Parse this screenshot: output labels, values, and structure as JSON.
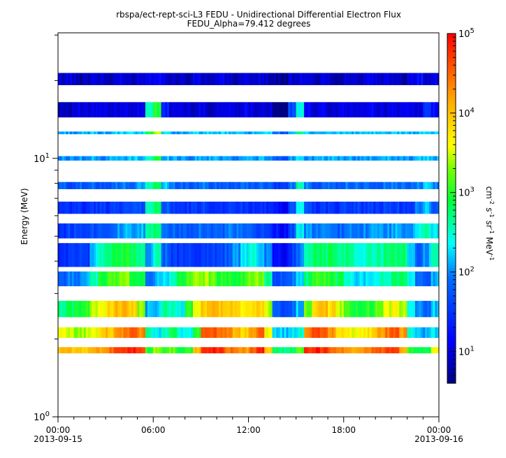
{
  "chart_data": {
    "type": "heatmap",
    "title": "rbspa/ect-rept-sci-L3  FEDU - Unidirectional Differential Electron Flux",
    "subtitle": "FEDU_Alpha=79.412 degrees",
    "xlabel": "",
    "ylabel": "Energy (MeV)",
    "yscale": "log",
    "ylim": [
      1,
      30.6
    ],
    "y_ticks": [
      {
        "base": "10",
        "exp": "0"
      },
      {
        "base": "10",
        "exp": "1"
      }
    ],
    "x_range_hours": [
      0,
      24
    ],
    "x_ticks": [
      {
        "time": "00:00",
        "date": "2013-09-15",
        "hour": 0
      },
      {
        "time": "06:00",
        "date": "",
        "hour": 6
      },
      {
        "time": "12:00",
        "date": "",
        "hour": 12
      },
      {
        "time": "18:00",
        "date": "",
        "hour": 18
      },
      {
        "time": "00:00",
        "date": "2013-09-16",
        "hour": 24
      }
    ],
    "colorbar": {
      "label_parts": [
        [
          "cm",
          "-2"
        ],
        [
          "s",
          "-1"
        ],
        [
          "sr",
          "-1"
        ],
        [
          "MeV",
          "-1"
        ]
      ],
      "scale": "log",
      "range_log10": [
        0.6,
        5
      ],
      "ticks": [
        {
          "base": "10",
          "exp": "1"
        },
        {
          "base": "10",
          "exp": "2"
        },
        {
          "base": "10",
          "exp": "3"
        },
        {
          "base": "10",
          "exp": "4"
        },
        {
          "base": "10",
          "exp": "5"
        }
      ],
      "colormap": "jet"
    },
    "time_bin_hours": 0.5,
    "value_units": "log10 flux (cm^-2 s^-1 sr^-1 MeV^-1)",
    "channels": [
      {
        "energy": 20.0,
        "lo": 19.2,
        "hi": 21.4,
        "values": [
          0.9,
          1.0,
          0.8,
          0.9,
          1.0,
          0.9,
          0.8,
          1.0,
          0.9,
          0.9,
          1.0,
          1.1,
          1.2,
          1.0,
          0.9,
          0.9,
          0.8,
          1.0,
          0.9,
          0.9,
          1.0,
          0.9,
          0.8,
          0.9,
          1.0,
          1.0,
          0.9,
          0.7,
          0.6,
          0.9,
          1.0,
          0.9,
          0.9,
          1.0,
          0.9,
          0.8,
          1.0,
          0.9,
          0.9,
          1.0,
          0.9,
          0.9,
          1.0,
          0.8,
          1.1,
          1.2,
          0.9,
          1.0
        ]
      },
      {
        "energy": 15.5,
        "lo": 14.4,
        "hi": 16.5,
        "values": [
          0.9,
          0.9,
          1.0,
          0.9,
          1.0,
          1.0,
          0.9,
          1.0,
          1.1,
          1.0,
          1.0,
          2.6,
          2.9,
          1.3,
          1.0,
          1.0,
          0.9,
          1.0,
          1.0,
          0.9,
          1.0,
          1.0,
          1.0,
          1.1,
          1.0,
          1.0,
          1.0,
          0.5,
          0.4,
          1.6,
          2.4,
          1.2,
          1.0,
          1.0,
          0.9,
          1.0,
          1.0,
          1.0,
          1.0,
          1.1,
          1.0,
          1.0,
          1.0,
          1.0,
          1.1,
          1.0,
          1.4,
          1.2
        ]
      },
      {
        "energy": 12.6,
        "lo": 12.4,
        "hi": 12.7,
        "values": [
          2.1,
          2.1,
          2.0,
          2.1,
          2.2,
          2.1,
          2.1,
          2.2,
          2.2,
          2.2,
          2.2,
          2.9,
          3.5,
          2.3,
          2.1,
          2.1,
          2.1,
          2.2,
          2.2,
          2.1,
          2.2,
          2.2,
          2.1,
          2.2,
          2.1,
          2.1,
          2.2,
          1.9,
          1.8,
          2.2,
          2.6,
          2.2,
          2.1,
          2.2,
          2.1,
          2.2,
          2.2,
          2.1,
          2.2,
          2.2,
          2.1,
          2.1,
          2.2,
          2.2,
          2.1,
          2.2,
          2.3,
          2.2
        ]
      },
      {
        "energy": 10.0,
        "lo": 9.8,
        "hi": 10.2,
        "values": [
          2.0,
          2.0,
          2.1,
          2.0,
          2.1,
          2.0,
          2.1,
          2.1,
          2.1,
          2.2,
          2.2,
          2.5,
          2.9,
          2.2,
          2.1,
          2.1,
          2.0,
          2.1,
          2.1,
          2.1,
          2.1,
          2.1,
          2.0,
          2.1,
          2.1,
          2.1,
          2.0,
          1.8,
          1.7,
          2.1,
          2.3,
          2.1,
          2.0,
          2.1,
          2.1,
          2.1,
          2.1,
          2.0,
          2.1,
          2.1,
          2.0,
          2.1,
          2.1,
          2.1,
          2.0,
          2.2,
          2.2,
          2.1
        ]
      },
      {
        "energy": 7.8,
        "lo": 7.6,
        "hi": 8.1,
        "values": [
          1.8,
          1.7,
          1.8,
          1.7,
          1.8,
          1.8,
          1.8,
          1.9,
          1.9,
          1.9,
          2.0,
          2.6,
          2.8,
          2.2,
          1.9,
          1.8,
          1.8,
          1.8,
          1.9,
          1.8,
          1.8,
          1.8,
          1.8,
          1.9,
          1.8,
          1.8,
          1.8,
          1.6,
          1.5,
          1.9,
          2.6,
          2.0,
          1.8,
          1.8,
          1.8,
          1.8,
          1.9,
          1.9,
          1.8,
          1.8,
          1.8,
          1.9,
          1.9,
          1.8,
          1.8,
          2.0,
          2.3,
          2.0
        ]
      },
      {
        "energy": 6.4,
        "lo": 6.1,
        "hi": 6.8,
        "values": [
          1.4,
          1.4,
          1.5,
          1.4,
          1.5,
          1.5,
          1.5,
          1.6,
          1.6,
          1.6,
          1.7,
          2.5,
          2.8,
          1.8,
          1.5,
          1.5,
          1.5,
          1.5,
          1.6,
          1.5,
          1.5,
          1.6,
          1.5,
          1.5,
          1.5,
          1.5,
          1.4,
          1.2,
          1.1,
          1.6,
          2.4,
          1.7,
          1.5,
          1.5,
          1.5,
          1.5,
          1.6,
          1.6,
          1.5,
          1.5,
          1.5,
          1.6,
          1.6,
          1.5,
          1.6,
          1.9,
          2.2,
          1.8
        ]
      },
      {
        "energy": 5.2,
        "lo": 4.9,
        "hi": 5.6,
        "values": [
          1.5,
          1.6,
          1.6,
          1.7,
          1.7,
          1.8,
          1.8,
          2.0,
          2.1,
          2.0,
          2.1,
          2.6,
          2.8,
          2.0,
          1.8,
          1.8,
          1.8,
          1.9,
          1.9,
          1.8,
          1.8,
          1.9,
          1.9,
          1.8,
          1.7,
          1.6,
          1.5,
          1.3,
          1.2,
          1.7,
          2.4,
          2.0,
          1.9,
          1.9,
          1.9,
          1.8,
          1.9,
          2.0,
          2.0,
          2.1,
          2.0,
          2.0,
          2.1,
          2.0,
          2.1,
          2.4,
          2.6,
          2.3
        ]
      },
      {
        "energy": 4.2,
        "lo": 3.8,
        "hi": 4.7,
        "values": [
          1.4,
          1.5,
          1.5,
          1.6,
          2.2,
          2.6,
          2.8,
          2.9,
          2.9,
          2.8,
          2.6,
          2.0,
          2.5,
          1.8,
          1.6,
          1.5,
          1.5,
          1.5,
          1.6,
          1.6,
          1.6,
          1.8,
          2.0,
          2.3,
          2.4,
          2.3,
          1.9,
          1.2,
          1.1,
          1.5,
          1.9,
          2.6,
          2.8,
          2.8,
          2.8,
          2.7,
          2.7,
          2.6,
          2.5,
          2.6,
          2.6,
          2.7,
          2.8,
          2.7,
          2.2,
          1.8,
          2.1,
          2.5
        ]
      },
      {
        "energy": 3.4,
        "lo": 3.2,
        "hi": 3.65,
        "values": [
          1.8,
          1.9,
          2.0,
          2.2,
          2.5,
          2.9,
          3.1,
          3.2,
          3.3,
          3.0,
          2.8,
          2.0,
          2.1,
          2.3,
          2.5,
          2.9,
          3.1,
          3.3,
          3.4,
          3.2,
          3.0,
          2.9,
          3.0,
          3.1,
          3.2,
          3.3,
          2.6,
          1.7,
          1.7,
          1.9,
          2.3,
          2.7,
          3.0,
          3.1,
          3.0,
          2.8,
          2.4,
          2.3,
          2.3,
          2.4,
          2.5,
          2.6,
          2.7,
          2.8,
          2.4,
          1.9,
          1.7,
          2.1
        ]
      },
      {
        "energy": 2.6,
        "lo": 2.43,
        "hi": 2.81,
        "values": [
          2.7,
          2.8,
          2.9,
          3.1,
          3.4,
          3.7,
          3.9,
          4.0,
          4.1,
          3.8,
          3.3,
          2.1,
          2.2,
          2.6,
          2.5,
          2.4,
          3.0,
          3.6,
          3.9,
          4.0,
          4.0,
          3.9,
          3.8,
          3.7,
          3.8,
          3.9,
          3.4,
          1.7,
          1.6,
          1.8,
          2.2,
          3.2,
          3.9,
          4.0,
          3.8,
          3.4,
          3.0,
          2.9,
          2.9,
          3.0,
          3.2,
          3.5,
          3.7,
          3.4,
          2.3,
          2.0,
          1.9,
          2.2
        ]
      },
      {
        "energy": 2.1,
        "lo": 2.02,
        "hi": 2.22,
        "values": [
          3.5,
          3.4,
          3.3,
          3.4,
          3.6,
          3.8,
          4.0,
          4.2,
          4.4,
          4.6,
          4.3,
          2.6,
          2.3,
          2.6,
          2.9,
          2.4,
          2.3,
          3.0,
          4.5,
          4.6,
          4.5,
          4.3,
          4.0,
          3.8,
          4.1,
          4.5,
          3.6,
          2.2,
          2.2,
          2.3,
          2.4,
          4.4,
          4.6,
          4.5,
          4.2,
          3.9,
          3.7,
          3.6,
          3.7,
          3.8,
          4.1,
          4.4,
          4.6,
          4.2,
          2.4,
          2.2,
          2.1,
          2.3
        ]
      },
      {
        "energy": 1.8,
        "lo": 1.76,
        "hi": 1.86,
        "values": [
          4.0,
          4.0,
          3.9,
          4.0,
          4.1,
          4.2,
          4.4,
          4.6,
          4.8,
          4.9,
          4.6,
          3.0,
          3.3,
          3.0,
          3.2,
          2.8,
          3.0,
          4.0,
          4.8,
          4.9,
          4.7,
          4.5,
          4.3,
          4.2,
          4.5,
          4.8,
          4.0,
          2.8,
          2.7,
          2.8,
          3.2,
          4.8,
          4.9,
          4.8,
          4.6,
          4.4,
          4.2,
          4.2,
          4.3,
          4.4,
          4.6,
          4.7,
          4.8,
          4.2,
          3.0,
          2.9,
          2.8,
          3.6
        ]
      }
    ]
  }
}
